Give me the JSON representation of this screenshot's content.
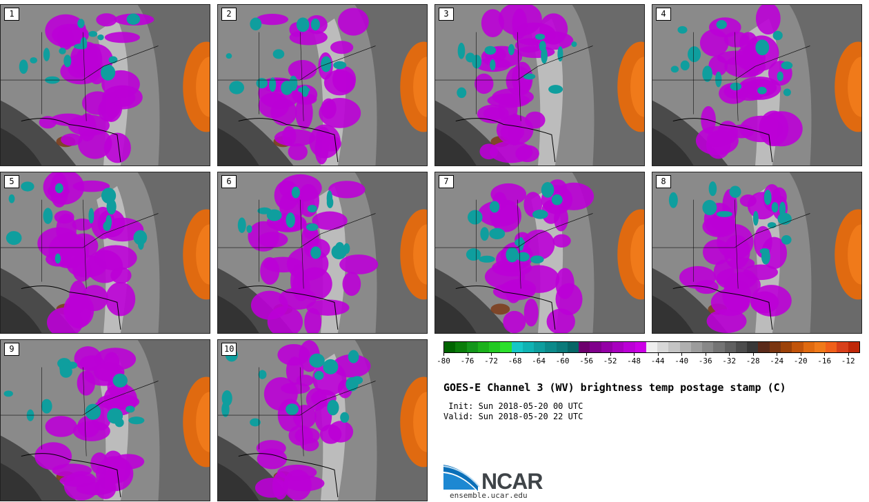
{
  "panels": [
    {
      "label": "1"
    },
    {
      "label": "2"
    },
    {
      "label": "3"
    },
    {
      "label": "4"
    },
    {
      "label": "5"
    },
    {
      "label": "6"
    },
    {
      "label": "7"
    },
    {
      "label": "8"
    },
    {
      "label": "9"
    },
    {
      "label": "10"
    }
  ],
  "colorbar": {
    "colors": [
      "#006400",
      "#0a7d0a",
      "#13961a",
      "#1bb11b",
      "#22c922",
      "#2ce02c",
      "#17c7c7",
      "#10b3b3",
      "#0f9e9e",
      "#0c8a8a",
      "#0a7a7a",
      "#066666",
      "#6e006e",
      "#80008c",
      "#9400a6",
      "#a800bf",
      "#bb00d6",
      "#cc00e6",
      "#eeeeee",
      "#d8d8d8",
      "#c4c4c4",
      "#b0b0b0",
      "#9c9c9c",
      "#888888",
      "#747474",
      "#606060",
      "#4c4c4c",
      "#383838",
      "#5a2a1a",
      "#7a3510",
      "#9c4208",
      "#c2540a",
      "#e06a10",
      "#f07a1a",
      "#f0601a",
      "#d8401a",
      "#c02808"
    ],
    "ticks": [
      "-80",
      "-76",
      "-72",
      "-68",
      "-64",
      "-60",
      "-56",
      "-52",
      "-48",
      "-44",
      "-40",
      "-36",
      "-32",
      "-28",
      "-24",
      "-20",
      "-16",
      "-12"
    ],
    "min": -80,
    "max": -10
  },
  "title": "GOES-E Channel 3 (WV) brightness temp postage stamp (C)",
  "init_line": " Init: Sun 2018-05-20 00 UTC",
  "valid_line": "Valid: Sun 2018-05-20 22 UTC",
  "logo": {
    "text": "NCAR",
    "url": "ensemble.ucar.edu",
    "accent": "#0a6fb8"
  }
}
